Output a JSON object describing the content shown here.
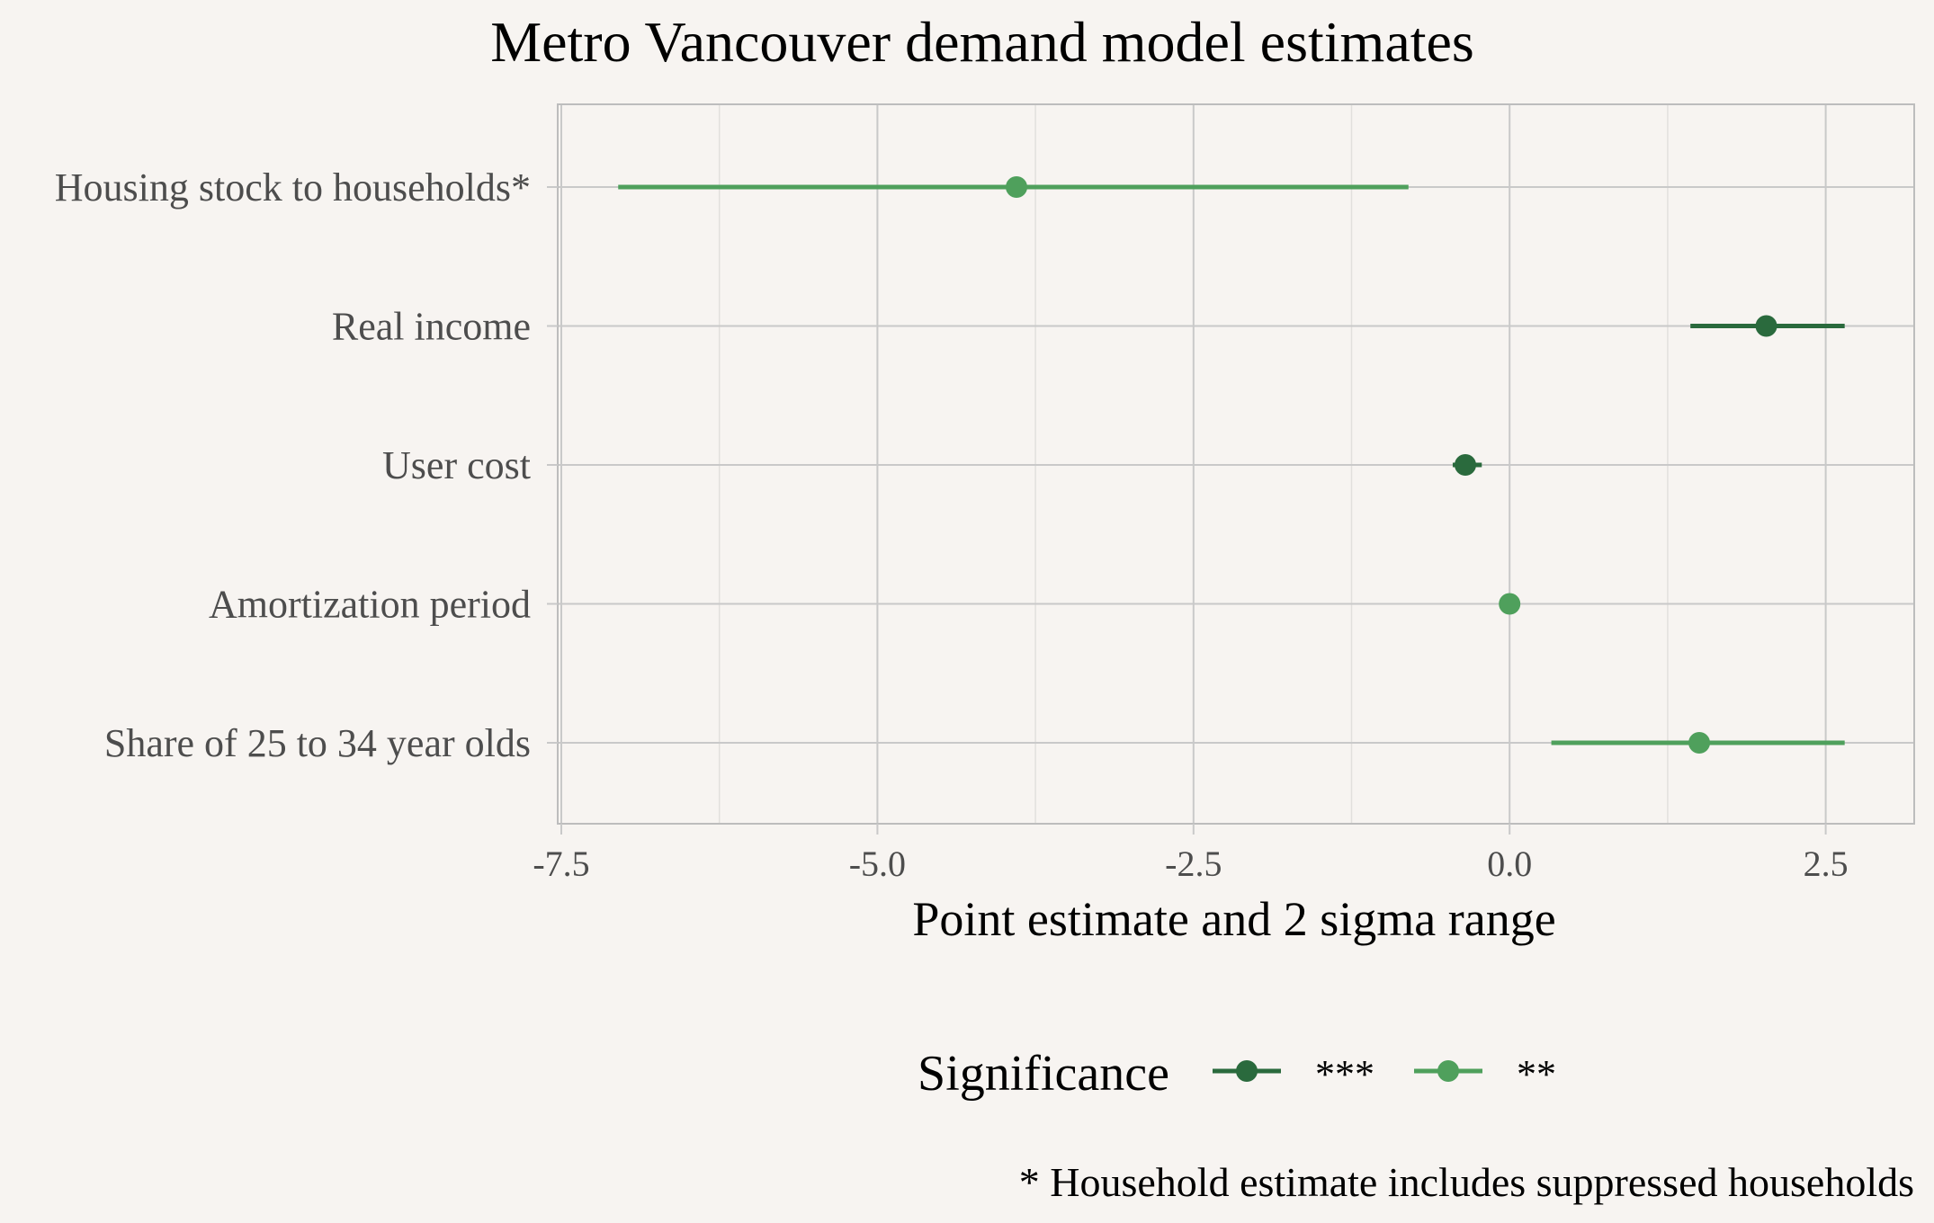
{
  "chart_data": {
    "type": "scatter",
    "title": "Metro Vancouver demand model estimates",
    "xlabel": "Point estimate and 2 sigma range",
    "ylabel": "",
    "xlim": [
      -7.5,
      3.2
    ],
    "xticks": [
      -7.5,
      -5.0,
      -2.5,
      0.0,
      2.5
    ],
    "xtick_labels": [
      "-7.5",
      "-5.0",
      "-2.5",
      "0.0",
      "2.5"
    ],
    "categories": [
      "Housing stock to households*",
      "Real income",
      "User cost",
      "Amortization period",
      "Share of 25 to 34 year olds"
    ],
    "estimates": [
      {
        "term": "Housing stock to households*",
        "estimate": -3.9,
        "low": -7.05,
        "high": -0.8,
        "significance": "**"
      },
      {
        "term": "Real income",
        "estimate": 2.03,
        "low": 1.43,
        "high": 2.65,
        "significance": "***"
      },
      {
        "term": "User cost",
        "estimate": -0.35,
        "low": -0.45,
        "high": -0.22,
        "significance": "***"
      },
      {
        "term": "Amortization period",
        "estimate": 0.0,
        "low": -0.02,
        "high": 0.02,
        "significance": "**"
      },
      {
        "term": "Share of 25 to 34 year olds",
        "estimate": 1.5,
        "low": 0.33,
        "high": 2.65,
        "significance": "**"
      }
    ],
    "legend": {
      "title": "Significance",
      "position": "bottom",
      "items": [
        {
          "label": "***",
          "color": "#2a6a3d"
        },
        {
          "label": "**",
          "color": "#4fa05c"
        }
      ]
    },
    "grid": true,
    "caption": "* Household estimate includes suppressed households"
  },
  "colors": {
    "background": "#f7f4f1",
    "panel_border": "#bdbdbd",
    "grid_major": "#c9c9c9",
    "grid_minor": "#e2e0dd"
  }
}
